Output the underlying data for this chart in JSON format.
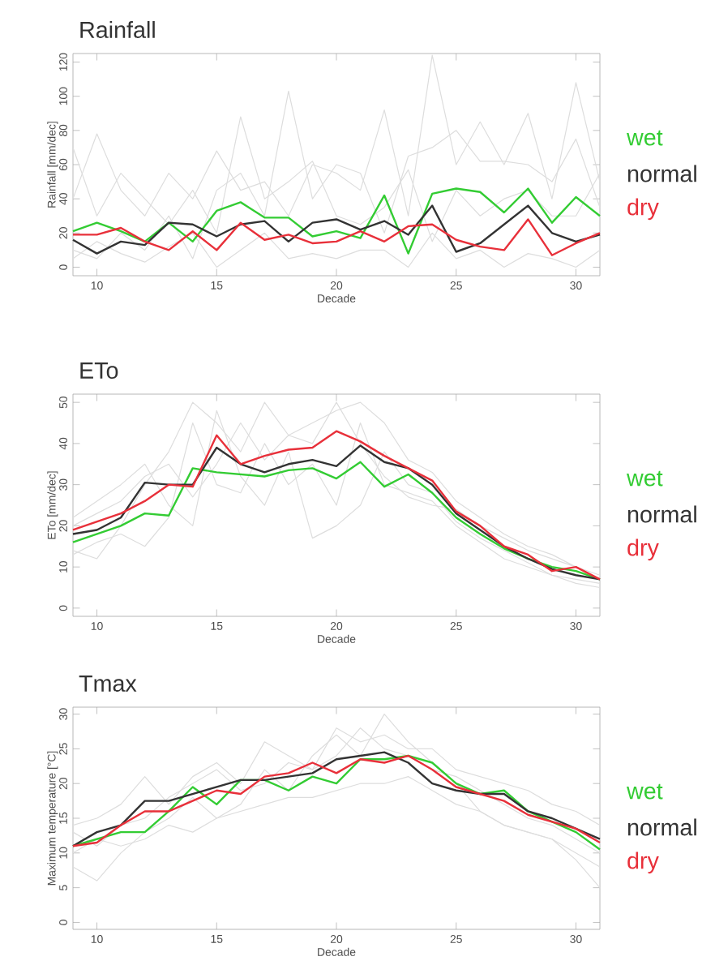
{
  "chart_data": [
    {
      "type": "line",
      "title": "Rainfall",
      "xlabel": "Decade",
      "ylabel": "Rainfall [mm/dec]",
      "xlim": [
        9,
        31
      ],
      "ylim": [
        -5,
        125
      ],
      "xticks": [
        10,
        15,
        20,
        25,
        30
      ],
      "yticks": [
        0,
        20,
        40,
        60,
        80,
        100,
        120
      ],
      "legend": "right",
      "grid": false,
      "x": [
        9,
        10,
        11,
        12,
        13,
        14,
        15,
        16,
        17,
        18,
        19,
        20,
        21,
        22,
        23,
        24,
        25,
        26,
        27,
        28,
        29,
        30,
        31
      ],
      "series": [
        {
          "color": "#dddddd",
          "values": [
            40,
            78,
            45,
            30,
            55,
            40,
            68,
            45,
            50,
            30,
            60,
            55,
            45,
            92,
            30,
            124,
            60,
            85,
            60,
            90,
            40,
            108,
            50
          ]
        },
        {
          "color": "#dddddd",
          "values": [
            10,
            5,
            20,
            10,
            30,
            5,
            45,
            55,
            30,
            103,
            40,
            60,
            55,
            20,
            65,
            70,
            80,
            62,
            62,
            60,
            50,
            75,
            35
          ]
        },
        {
          "color": "#dddddd",
          "values": [
            5,
            15,
            8,
            3,
            12,
            20,
            0,
            10,
            20,
            5,
            8,
            5,
            10,
            10,
            0,
            20,
            5,
            10,
            0,
            8,
            5,
            0,
            10
          ]
        },
        {
          "color": "#dddddd",
          "values": [
            70,
            30,
            55,
            40,
            25,
            45,
            20,
            88,
            40,
            50,
            62,
            30,
            25,
            35,
            57,
            15,
            45,
            30,
            40,
            45,
            30,
            30,
            55
          ]
        },
        {
          "name": "wet",
          "color": "#33cc33",
          "values": [
            21,
            26,
            21,
            15,
            26,
            15,
            33,
            38,
            29,
            29,
            18,
            21,
            17,
            42,
            8,
            43,
            46,
            44,
            32,
            46,
            26,
            41,
            30
          ]
        },
        {
          "name": "normal",
          "color": "#333333",
          "values": [
            16,
            8,
            15,
            13,
            26,
            25,
            18,
            25,
            27,
            15,
            26,
            28,
            22,
            27,
            19,
            36,
            9,
            14,
            25,
            36,
            20,
            15,
            19
          ]
        },
        {
          "name": "dry",
          "color": "#e8303a",
          "values": [
            19,
            19,
            23,
            15,
            10,
            21,
            10,
            26,
            16,
            19,
            14,
            15,
            21,
            15,
            24,
            25,
            16,
            12,
            10,
            28,
            7,
            14,
            20
          ]
        }
      ]
    },
    {
      "type": "line",
      "title": "ETo",
      "xlabel": "Decade",
      "ylabel": "ETo [mm/dec]",
      "xlim": [
        9,
        31
      ],
      "ylim": [
        -2,
        52
      ],
      "xticks": [
        10,
        15,
        20,
        25,
        30
      ],
      "yticks": [
        0,
        10,
        20,
        30,
        40,
        50
      ],
      "legend": "right",
      "grid": false,
      "x": [
        9,
        10,
        11,
        12,
        13,
        14,
        15,
        16,
        17,
        18,
        19,
        20,
        21,
        22,
        23,
        24,
        25,
        26,
        27,
        28,
        29,
        30,
        31
      ],
      "series": [
        {
          "color": "#dddddd",
          "values": [
            14,
            12,
            20,
            30,
            38,
            50,
            45,
            38,
            50,
            42,
            45,
            48,
            50,
            45,
            36,
            33,
            26,
            22,
            18,
            15,
            13,
            10,
            8
          ]
        },
        {
          "color": "#dddddd",
          "values": [
            22,
            26,
            30,
            35,
            25,
            20,
            48,
            32,
            25,
            38,
            17,
            20,
            25,
            38,
            30,
            28,
            21,
            17,
            14,
            11,
            8,
            6,
            5
          ]
        },
        {
          "color": "#dddddd",
          "values": [
            13,
            16,
            18,
            15,
            22,
            45,
            30,
            28,
            40,
            30,
            35,
            25,
            45,
            30,
            28,
            26,
            20,
            16,
            12,
            10,
            8,
            7,
            6
          ]
        },
        {
          "color": "#dddddd",
          "values": [
            20,
            23,
            26,
            32,
            35,
            27,
            35,
            45,
            36,
            42,
            40,
            50,
            40,
            32,
            27,
            25,
            24,
            20,
            17,
            14,
            12,
            10,
            7
          ]
        },
        {
          "name": "wet",
          "color": "#33cc33",
          "values": [
            16,
            18,
            20,
            23,
            22.5,
            34,
            33,
            32.5,
            32,
            33.5,
            34,
            31.5,
            35.5,
            29.5,
            32.5,
            28,
            22,
            18,
            14.5,
            12,
            10,
            9,
            7
          ]
        },
        {
          "name": "normal",
          "color": "#333333",
          "values": [
            18,
            19,
            22,
            30.5,
            30,
            30,
            39,
            35,
            33,
            35,
            36,
            34.5,
            39.5,
            35.5,
            34,
            30,
            23,
            19,
            15,
            12,
            9.5,
            8,
            7
          ]
        },
        {
          "name": "dry",
          "color": "#e8303a",
          "values": [
            19,
            21,
            23,
            26,
            30,
            29.5,
            42,
            35,
            37,
            38.5,
            39,
            43,
            40.5,
            37,
            34,
            31,
            23.5,
            20,
            15,
            13,
            9,
            10,
            7
          ]
        }
      ]
    },
    {
      "type": "line",
      "title": "Tmax",
      "xlabel": "Decade",
      "ylabel": "Maximum temperature [°C]",
      "xlim": [
        9,
        31
      ],
      "ylim": [
        -1,
        31
      ],
      "xticks": [
        10,
        15,
        20,
        25,
        30
      ],
      "yticks": [
        0,
        5,
        10,
        15,
        20,
        25,
        30
      ],
      "legend": "right",
      "grid": false,
      "x": [
        9,
        10,
        11,
        12,
        13,
        14,
        15,
        16,
        17,
        18,
        19,
        20,
        21,
        22,
        23,
        24,
        25,
        26,
        27,
        28,
        29,
        30,
        31
      ],
      "series": [
        {
          "color": "#dddddd",
          "values": [
            8,
            6,
            10,
            13,
            15,
            18,
            15,
            17,
            22,
            19,
            24,
            27,
            24,
            30,
            26,
            23,
            20,
            16,
            14,
            13,
            12,
            9,
            5
          ]
        },
        {
          "color": "#dddddd",
          "values": [
            14,
            15,
            17,
            21,
            17,
            21,
            23,
            20,
            26,
            24,
            22,
            28,
            26,
            27,
            25,
            25,
            22,
            21,
            20,
            19,
            17,
            16,
            14
          ]
        },
        {
          "color": "#dddddd",
          "values": [
            10,
            12,
            11,
            12,
            14,
            13,
            15,
            16,
            17,
            18,
            18,
            19,
            20,
            20,
            21,
            19,
            17,
            16,
            14,
            13,
            12,
            10,
            8
          ]
        },
        {
          "color": "#dddddd",
          "values": [
            13,
            11,
            14,
            15,
            18,
            20,
            22,
            19,
            20,
            23,
            22,
            24,
            28,
            25,
            24,
            22,
            21,
            19,
            17,
            15,
            14,
            12,
            10
          ]
        },
        {
          "name": "wet",
          "color": "#33cc33",
          "values": [
            11,
            12,
            13,
            13,
            16,
            19.5,
            17,
            20.5,
            20.5,
            19,
            21,
            20,
            23.5,
            23.5,
            24,
            23,
            20,
            18.5,
            19,
            16,
            14.5,
            13,
            10.5
          ]
        },
        {
          "name": "normal",
          "color": "#333333",
          "values": [
            11,
            13,
            14,
            17.5,
            17.5,
            18.5,
            19.5,
            20.5,
            20.5,
            21,
            21.5,
            23.5,
            24,
            24.5,
            23,
            20,
            19,
            18.5,
            18.5,
            16,
            15,
            13.5,
            12
          ]
        },
        {
          "name": "dry",
          "color": "#e8303a",
          "values": [
            11,
            11.5,
            14,
            16,
            16,
            17.5,
            19,
            18.5,
            21,
            21.5,
            23,
            21.5,
            23.5,
            23,
            24,
            22,
            19.5,
            18.5,
            17.5,
            15.5,
            14.5,
            13.5,
            11.5
          ]
        }
      ]
    }
  ]
}
